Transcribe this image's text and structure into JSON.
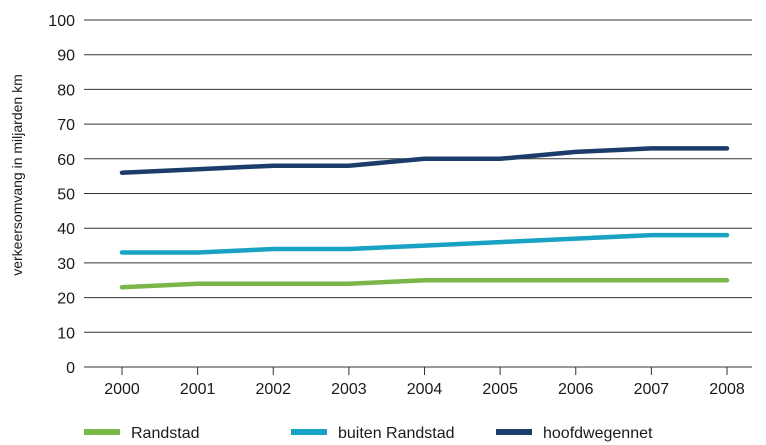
{
  "chart_data": {
    "type": "line",
    "title": "",
    "xlabel": "",
    "ylabel": "verkeersomvang in miljarden km",
    "x": [
      "2000",
      "2001",
      "2002",
      "2003",
      "2004",
      "2005",
      "2006",
      "2007",
      "2008"
    ],
    "yticks": [
      "0",
      "10",
      "20",
      "30",
      "40",
      "50",
      "60",
      "70",
      "80",
      "90",
      "100"
    ],
    "ylim": [
      0,
      100
    ],
    "grid": "horizontal",
    "legend_position": "bottom",
    "series": [
      {
        "name": "Randstad",
        "color": "#7ab648",
        "values": [
          23,
          24,
          24,
          24,
          25,
          25,
          25,
          25,
          25
        ]
      },
      {
        "name": "buiten Randstad",
        "color": "#1aa2c4",
        "values": [
          33,
          33,
          34,
          34,
          35,
          36,
          37,
          38,
          38
        ]
      },
      {
        "name": "hoofdwegennet",
        "color": "#1c3c6c",
        "values": [
          56,
          57,
          58,
          58,
          60,
          60,
          62,
          63,
          63
        ]
      }
    ]
  }
}
